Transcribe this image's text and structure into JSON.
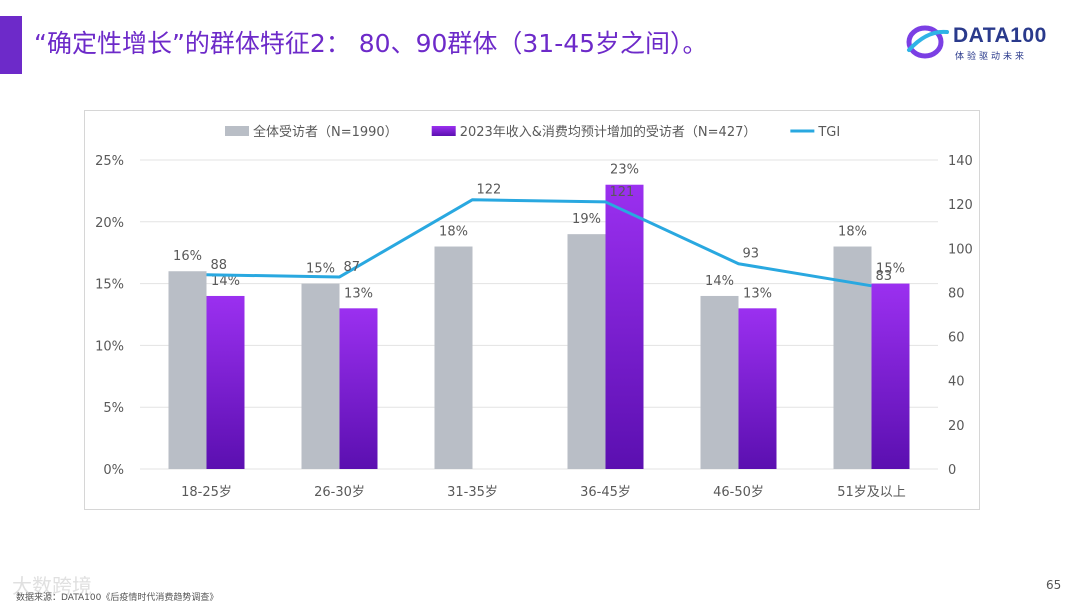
{
  "header": {
    "title": "“确定性增长”的群体特征2： 80、90群体（31-45岁之间）。",
    "accent_color": "#6d2ac9"
  },
  "logo": {
    "name": "DATA100",
    "tagline": "体验驱动未来",
    "icon": "data100-logo-icon"
  },
  "chart_data": {
    "type": "bar",
    "categories": [
      "18-25岁",
      "26-30岁",
      "31-35岁",
      "36-45岁",
      "46-50岁",
      "51岁及以上"
    ],
    "series": [
      {
        "name": "全体受访者（N=1990）",
        "kind": "bar",
        "axis": "left",
        "color": "#b9bec6",
        "values": [
          16,
          15,
          18,
          19,
          14,
          18
        ],
        "labels": [
          "16%",
          "15%",
          "18%",
          "19%",
          "14%",
          "18%"
        ]
      },
      {
        "name": "2023年收入&消费均预计增加的受访者（N=427）",
        "kind": "bar",
        "axis": "left",
        "color": "#8a2be2",
        "values": [
          14,
          13,
          0,
          23,
          13,
          15
        ],
        "labels": [
          "14%",
          "13%",
          "",
          "23%",
          "13%",
          "15%"
        ]
      },
      {
        "name": "TGI",
        "kind": "line",
        "axis": "right",
        "color": "#29a8e0",
        "values": [
          88,
          87,
          122,
          121,
          93,
          83
        ],
        "labels": [
          "88",
          "87",
          "122",
          "121",
          "93",
          "83"
        ]
      }
    ],
    "y_left": {
      "min": 0,
      "max": 25,
      "ticks": [
        0,
        5,
        10,
        15,
        20,
        25
      ],
      "tick_labels": [
        "0%",
        "5%",
        "10%",
        "15%",
        "20%",
        "25%"
      ]
    },
    "y_right": {
      "min": 0,
      "max": 140,
      "ticks": [
        0,
        20,
        40,
        60,
        80,
        100,
        120,
        140
      ],
      "tick_labels": [
        "0",
        "20",
        "40",
        "60",
        "80",
        "100",
        "120",
        "140"
      ]
    },
    "legend_position": "top",
    "grid": true
  },
  "footer": {
    "source": "数据来源：DATA100《后疫情时代消费趋势调查》",
    "watermark": "大数跨境",
    "page_number": "65"
  }
}
